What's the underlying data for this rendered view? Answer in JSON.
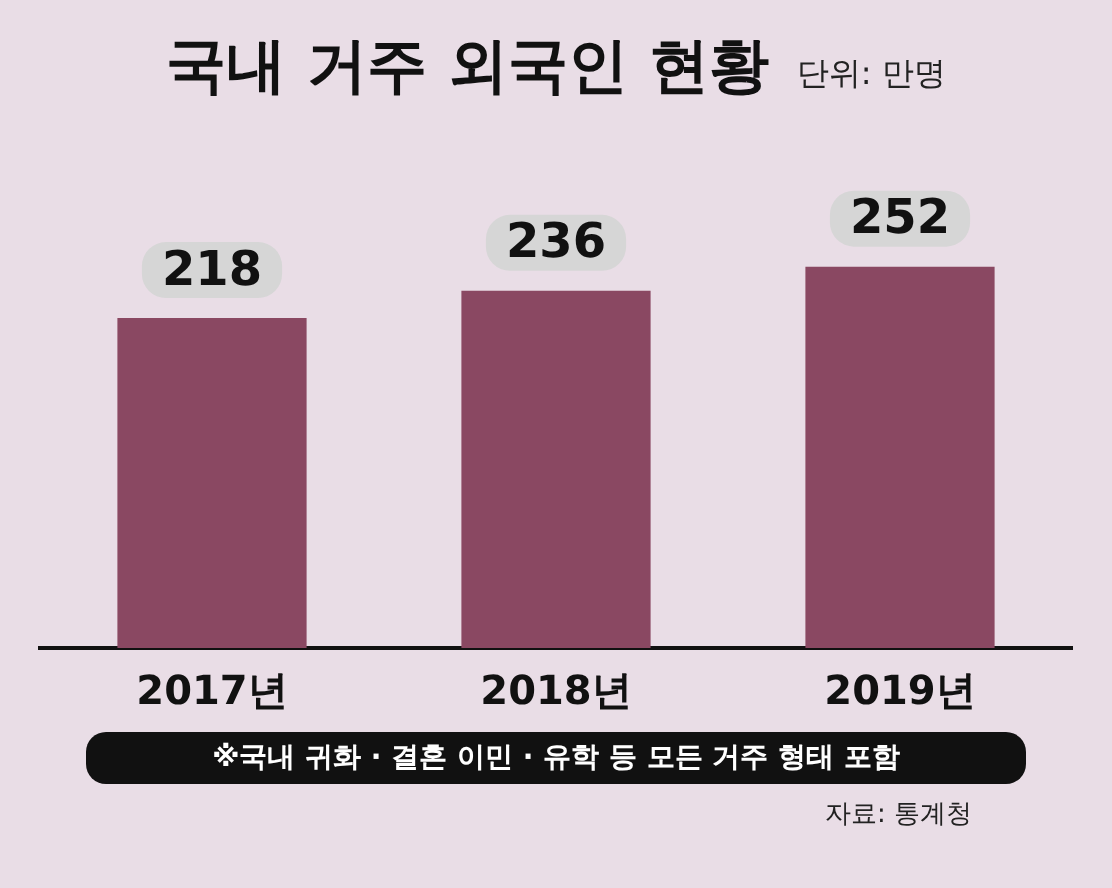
{
  "chart_data": {
    "type": "bar",
    "title": "국내 거주 외국인 현황",
    "subtitle": "단위: 만명",
    "categories": [
      "2017년",
      "2018년",
      "2019년"
    ],
    "values": [
      218,
      236,
      252
    ],
    "color": "#8a4862",
    "data_labels": true,
    "annotations": [
      "※국내 귀화 · 결혼 이민 · 유학 등 모든 거주 형태 포함",
      "자료: 통계청"
    ]
  }
}
